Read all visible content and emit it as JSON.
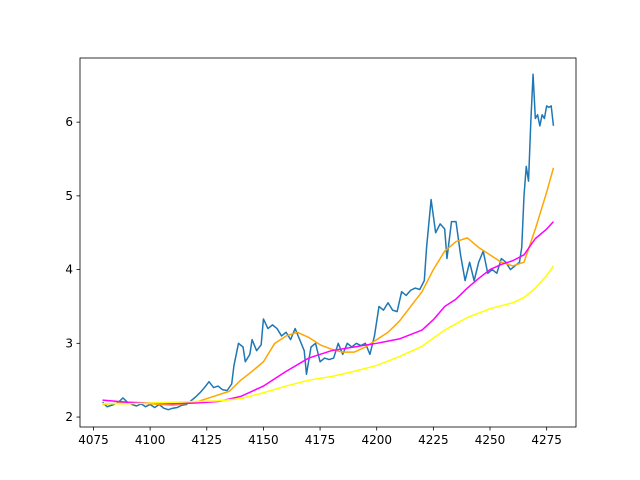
{
  "chart_data": {
    "type": "line",
    "xlim": [
      4069.05,
      4287.95
    ],
    "ylim": [
      1.865,
      6.87
    ],
    "xticks": [
      4075,
      4100,
      4125,
      4150,
      4175,
      4200,
      4225,
      4250,
      4275
    ],
    "yticks": [
      2,
      3,
      4,
      5,
      6
    ],
    "series": [
      {
        "color": "#1f77b4",
        "x": [
          4079,
          4081,
          4084,
          4086,
          4088,
          4090,
          4092,
          4094,
          4096,
          4098,
          4100,
          4102,
          4104,
          4106,
          4108,
          4110,
          4112,
          4114,
          4116,
          4118,
          4120,
          4122,
          4124,
          4126,
          4128,
          4130,
          4132,
          4134,
          4136,
          4137,
          4139,
          4141,
          4142,
          4144,
          4145,
          4147,
          4149,
          4150,
          4152,
          4154,
          4156,
          4158,
          4160,
          4162,
          4164,
          4166,
          4168,
          4169,
          4171,
          4173,
          4175,
          4177,
          4179,
          4181,
          4183,
          4185,
          4187,
          4189,
          4191,
          4193,
          4195,
          4197,
          4199,
          4201,
          4203,
          4205,
          4207,
          4209,
          4211,
          4213,
          4215,
          4217,
          4219,
          4221,
          4222,
          4224,
          4226,
          4228,
          4230,
          4231,
          4233,
          4235,
          4237,
          4239,
          4241,
          4243,
          4245,
          4247,
          4249,
          4251,
          4253,
          4255,
          4257,
          4259,
          4261,
          4263,
          4264,
          4265,
          4266,
          4267,
          4268,
          4269,
          4270,
          4271,
          4272,
          4273,
          4274,
          4275,
          4276,
          4277,
          4278
        ],
        "values": [
          2.2,
          2.14,
          2.17,
          2.2,
          2.26,
          2.2,
          2.17,
          2.15,
          2.18,
          2.14,
          2.17,
          2.13,
          2.17,
          2.12,
          2.1,
          2.12,
          2.13,
          2.16,
          2.17,
          2.22,
          2.27,
          2.33,
          2.4,
          2.48,
          2.4,
          2.42,
          2.37,
          2.36,
          2.45,
          2.7,
          3.0,
          2.95,
          2.75,
          2.85,
          3.05,
          2.9,
          2.98,
          3.33,
          3.2,
          3.25,
          3.2,
          3.1,
          3.15,
          3.05,
          3.2,
          3.05,
          2.9,
          2.58,
          2.95,
          3.0,
          2.75,
          2.8,
          2.78,
          2.8,
          3.0,
          2.85,
          3.0,
          2.95,
          3.0,
          2.97,
          3.0,
          2.85,
          3.1,
          3.5,
          3.45,
          3.55,
          3.45,
          3.43,
          3.7,
          3.65,
          3.72,
          3.75,
          3.73,
          3.85,
          4.3,
          4.95,
          4.5,
          4.62,
          4.55,
          4.15,
          4.65,
          4.65,
          4.2,
          3.85,
          4.1,
          3.85,
          4.1,
          4.25,
          3.95,
          4.0,
          3.95,
          4.15,
          4.1,
          4.0,
          4.05,
          4.1,
          4.3,
          5.0,
          5.4,
          5.2,
          6.0,
          6.65,
          6.05,
          6.1,
          5.95,
          6.1,
          6.05,
          6.22,
          6.2,
          6.22,
          5.95
        ]
      },
      {
        "color": "orange",
        "x": [
          4079,
          4090,
          4100,
          4110,
          4120,
          4130,
          4135,
          4140,
          4145,
          4150,
          4155,
          4160,
          4165,
          4170,
          4175,
          4180,
          4185,
          4190,
          4195,
          4200,
          4205,
          4210,
          4215,
          4220,
          4225,
          4230,
          4235,
          4240,
          4245,
          4250,
          4255,
          4260,
          4265,
          4270,
          4275,
          4278
        ],
        "values": [
          2.17,
          2.2,
          2.18,
          2.16,
          2.2,
          2.3,
          2.35,
          2.5,
          2.62,
          2.75,
          3.0,
          3.1,
          3.15,
          3.08,
          2.98,
          2.92,
          2.88,
          2.88,
          2.95,
          3.05,
          3.15,
          3.3,
          3.5,
          3.7,
          4.0,
          4.25,
          4.38,
          4.43,
          4.3,
          4.2,
          4.1,
          4.05,
          4.1,
          4.55,
          5.05,
          5.38
        ]
      },
      {
        "color": "magenta",
        "x": [
          4079,
          4090,
          4100,
          4110,
          4120,
          4130,
          4140,
          4150,
          4160,
          4170,
          4180,
          4190,
          4200,
          4210,
          4220,
          4225,
          4230,
          4235,
          4240,
          4245,
          4250,
          4255,
          4260,
          4265,
          4270,
          4275,
          4278
        ],
        "values": [
          2.23,
          2.2,
          2.19,
          2.18,
          2.19,
          2.21,
          2.28,
          2.42,
          2.62,
          2.8,
          2.9,
          2.95,
          3.0,
          3.06,
          3.18,
          3.32,
          3.5,
          3.6,
          3.75,
          3.88,
          4.0,
          4.07,
          4.12,
          4.2,
          4.42,
          4.55,
          4.65
        ]
      },
      {
        "color": "yellow",
        "x": [
          4079,
          4090,
          4100,
          4110,
          4120,
          4130,
          4140,
          4150,
          4160,
          4170,
          4180,
          4190,
          4200,
          4210,
          4220,
          4230,
          4240,
          4250,
          4260,
          4265,
          4270,
          4275,
          4278
        ],
        "values": [
          2.18,
          2.18,
          2.19,
          2.2,
          2.21,
          2.22,
          2.25,
          2.33,
          2.42,
          2.5,
          2.55,
          2.62,
          2.7,
          2.82,
          2.96,
          3.18,
          3.35,
          3.47,
          3.55,
          3.62,
          3.75,
          3.92,
          4.05
        ]
      }
    ]
  }
}
